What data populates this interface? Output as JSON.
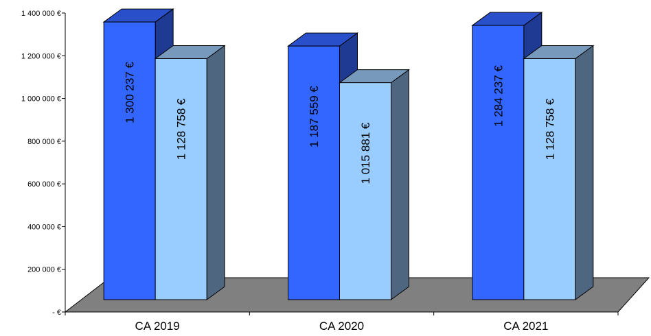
{
  "chart_data": {
    "type": "bar",
    "categories": [
      "CA 2019",
      "CA 2020",
      "CA 2021"
    ],
    "series": [
      {
        "values": [
          1300237,
          1187559,
          1284237
        ],
        "labels": [
          "1 300 237 €",
          "1 187 559 €",
          "1 284 237 €"
        ]
      },
      {
        "values": [
          1128758,
          1015881,
          1128758
        ],
        "labels": [
          "1 128 758 €",
          "1 015 881 €",
          "1 128 758 €"
        ]
      }
    ],
    "ylim": [
      0,
      1400000
    ],
    "yticks": [
      0,
      200000,
      400000,
      600000,
      800000,
      1000000,
      1200000,
      1400000
    ],
    "ytick_labels": [
      "- €",
      "200 000 €",
      "400 000 €",
      "600 000 €",
      "800 000 €",
      "1 000 000 €",
      "1 200 000 €",
      "1 400 000 €"
    ],
    "grid": false,
    "legend": "none",
    "style": "3d-column",
    "colors": {
      "series1_front": "#3366FF",
      "series1_top": "#2A4FCB",
      "series1_side": "#1F3A93",
      "series2_front": "#99CCFF",
      "series2_top": "#7799BB",
      "series2_side": "#4F6680",
      "floor": "#808080"
    }
  }
}
